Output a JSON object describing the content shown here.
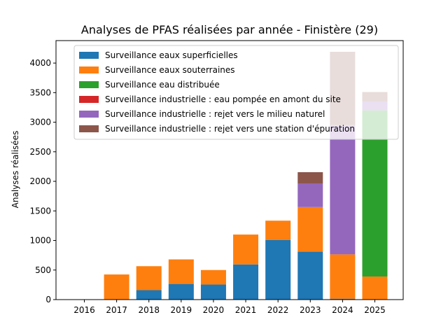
{
  "chart_data": {
    "type": "bar",
    "stacked": true,
    "title": "Analyses de PFAS réalisées par année - Finistère (29)",
    "xlabel": "",
    "ylabel": "Analyses réalisées",
    "categories": [
      "2016",
      "2017",
      "2018",
      "2019",
      "2020",
      "2021",
      "2022",
      "2023",
      "2024",
      "2025"
    ],
    "ylim": [
      0,
      4380
    ],
    "yticks": [
      0,
      500,
      1000,
      1500,
      2000,
      2500,
      3000,
      3500,
      4000
    ],
    "grid": false,
    "legend_position": "top-left",
    "series": [
      {
        "name": "Surveillance eaux superficielles",
        "color": "#1f77b4",
        "values": [
          0,
          0,
          160,
          265,
          255,
          595,
          1010,
          810,
          15,
          0
        ]
      },
      {
        "name": "Surveillance eaux souterraines",
        "color": "#ff7f0e",
        "values": [
          0,
          425,
          405,
          415,
          245,
          505,
          325,
          755,
          750,
          390
        ]
      },
      {
        "name": "Surveillance eau distribuée",
        "color": "#2ca02c",
        "values": [
          0,
          0,
          0,
          0,
          0,
          0,
          0,
          0,
          0,
          2810
        ]
      },
      {
        "name": "Surveillance industrielle : eau pompée en amont du site",
        "color": "#d62728",
        "values": [
          0,
          0,
          0,
          0,
          0,
          0,
          0,
          0,
          0,
          0
        ]
      },
      {
        "name": "Surveillance industrielle : rejet vers le milieu naturel",
        "color": "#9467bd",
        "values": [
          0,
          0,
          0,
          0,
          0,
          0,
          0,
          400,
          2185,
          150
        ]
      },
      {
        "name": "Surveillance industrielle : rejet vers une station d'épuration",
        "color": "#8c564b",
        "values": [
          0,
          0,
          0,
          0,
          0,
          0,
          0,
          190,
          1240,
          160
        ]
      }
    ]
  }
}
